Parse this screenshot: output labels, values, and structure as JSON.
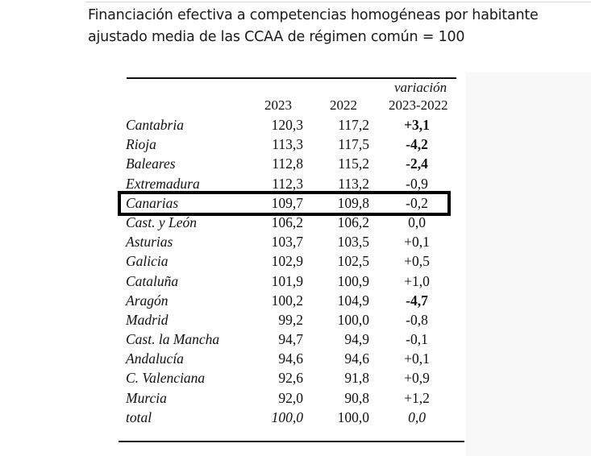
{
  "title": {
    "line1": "Financiación efectiva a competencias homogéneas por habitante",
    "line2": " ajustado media de las CCAA de régimen común = 100"
  },
  "table": {
    "headers": {
      "col_2023": "2023",
      "col_2022": "2022",
      "variation_line1": "variación",
      "variation_line2": "2023-2022"
    },
    "rows": [
      {
        "name": "Cantabria",
        "v2023": "120,3",
        "v2022": "117,2",
        "variation": "+3,1",
        "bold_variation": true
      },
      {
        "name": "Rioja",
        "v2023": "113,3",
        "v2022": "117,5",
        "variation": "-4,2",
        "bold_variation": true
      },
      {
        "name": "Baleares",
        "v2023": "112,8",
        "v2022": "115,2",
        "variation": "-2,4",
        "bold_variation": true
      },
      {
        "name": "Extremadura",
        "v2023": "112,3",
        "v2022": "113,2",
        "variation": "-0,9"
      },
      {
        "name": "Canarias",
        "v2023": "109,7",
        "v2022": "109,8",
        "variation": "-0,2",
        "highlighted": true
      },
      {
        "name": "Cast. y León",
        "v2023": "106,2",
        "v2022": "106,2",
        "variation": "0,0"
      },
      {
        "name": "Asturias",
        "v2023": "103,7",
        "v2022": "103,5",
        "variation": "+0,1"
      },
      {
        "name": "Galicia",
        "v2023": "102,9",
        "v2022": "102,5",
        "variation": "+0,5"
      },
      {
        "name": "Cataluña",
        "v2023": "101,9",
        "v2022": "100,9",
        "variation": "+1,0"
      },
      {
        "name": "Aragón",
        "v2023": "100,2",
        "v2022": "104,9",
        "variation": "-4,7",
        "bold_variation": true
      },
      {
        "name": "Madrid",
        "v2023": "99,2",
        "v2022": "100,0",
        "variation": "-0,8"
      },
      {
        "name": "Cast. la Mancha",
        "v2023": "94,7",
        "v2022": "94,9",
        "variation": "-0,1"
      },
      {
        "name": "Andalucía",
        "v2023": "94,6",
        "v2022": "94,6",
        "variation": "+0,1"
      },
      {
        "name": "C. Valenciana",
        "v2023": "92,6",
        "v2022": "91,8",
        "variation": "+0,9"
      },
      {
        "name": "Murcia",
        "v2023": "92,0",
        "v2022": "90,8",
        "variation": "+1,2"
      },
      {
        "name": "total",
        "v2023": "100,0",
        "v2022": "100,0",
        "variation": "0,0",
        "italic_values": true
      }
    ]
  },
  "colors": {
    "text": "#111111",
    "highlight_border": "#000000",
    "background": "#fefefe"
  }
}
